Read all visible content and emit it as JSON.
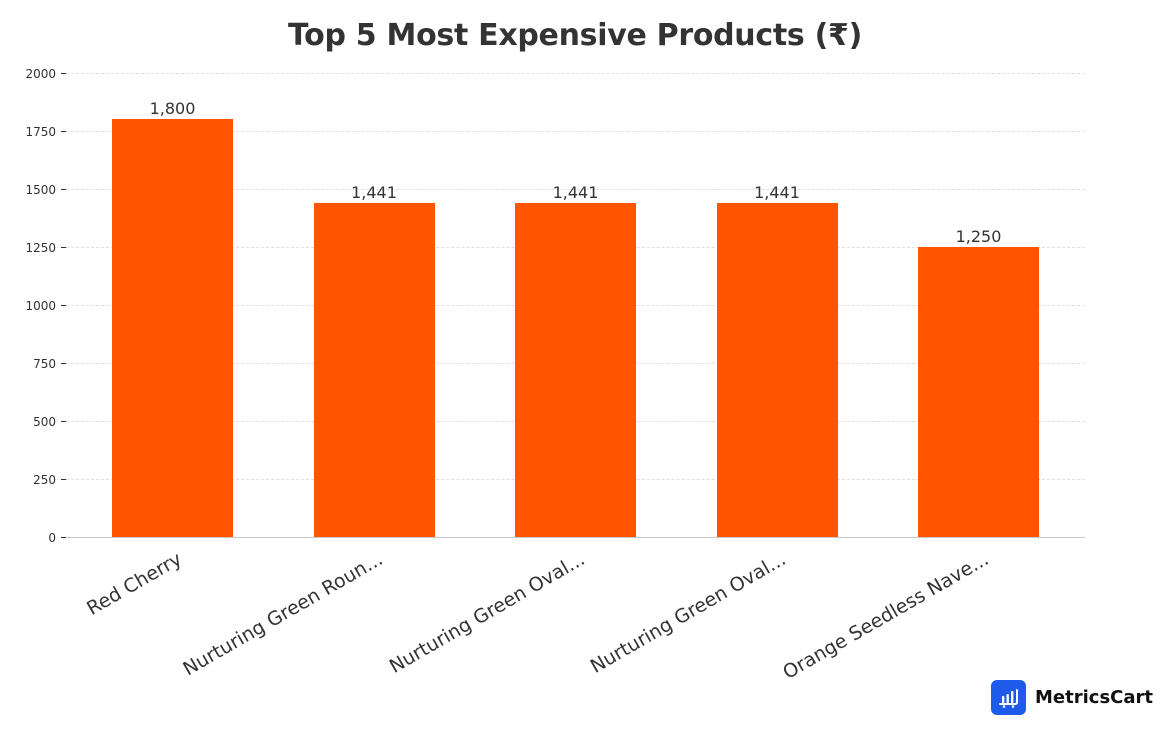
{
  "header": {
    "title": "Top 5 Most Expensive Products (₹)"
  },
  "brand": {
    "name": "MetricsCart",
    "icon": "bar-chart-cart-icon",
    "color": "#1f5bea"
  },
  "colors": {
    "bar": "#ff5500",
    "grid": "#e0e0e0",
    "axis": "#c8c8c8",
    "text": "#333333"
  },
  "chart_data": {
    "type": "bar",
    "title": "Top 5 Most Expensive Products (₹)",
    "xlabel": "",
    "ylabel": "",
    "categories": [
      "Red Cherry",
      "Nurturing Green Roun...",
      "Nurturing Green Oval...",
      "Nurturing Green Oval...",
      "Orange Seedless Nave..."
    ],
    "values": [
      1800,
      1441,
      1441,
      1441,
      1250
    ],
    "value_labels": [
      "1,800",
      "1,441",
      "1,441",
      "1,441",
      "1,250"
    ],
    "ylim": [
      0,
      2000
    ],
    "yticks": [
      0,
      250,
      500,
      750,
      1000,
      1250,
      1500,
      1750,
      2000
    ],
    "grid": true,
    "legend": null,
    "bar_color": "#ff5500"
  }
}
